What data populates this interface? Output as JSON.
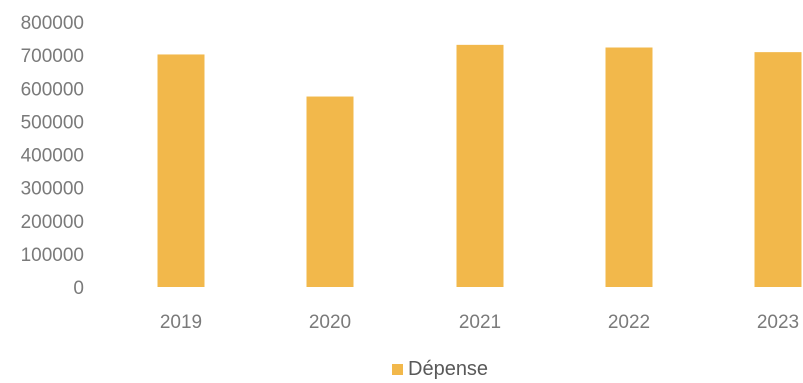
{
  "chart_data": {
    "type": "bar",
    "categories": [
      "2019",
      "2020",
      "2021",
      "2022",
      "2023"
    ],
    "series": [
      {
        "name": "Dépense",
        "values": [
          702000,
          575000,
          731000,
          723000,
          709000
        ],
        "color": "#F2B84B"
      }
    ],
    "ylim": [
      0,
      800000
    ],
    "yticks": [
      "0",
      "100000",
      "200000",
      "300000",
      "400000",
      "500000",
      "600000",
      "700000",
      "800000"
    ],
    "title": "",
    "xlabel": "",
    "ylabel": "",
    "grid": false,
    "legend": "bottom-center"
  }
}
